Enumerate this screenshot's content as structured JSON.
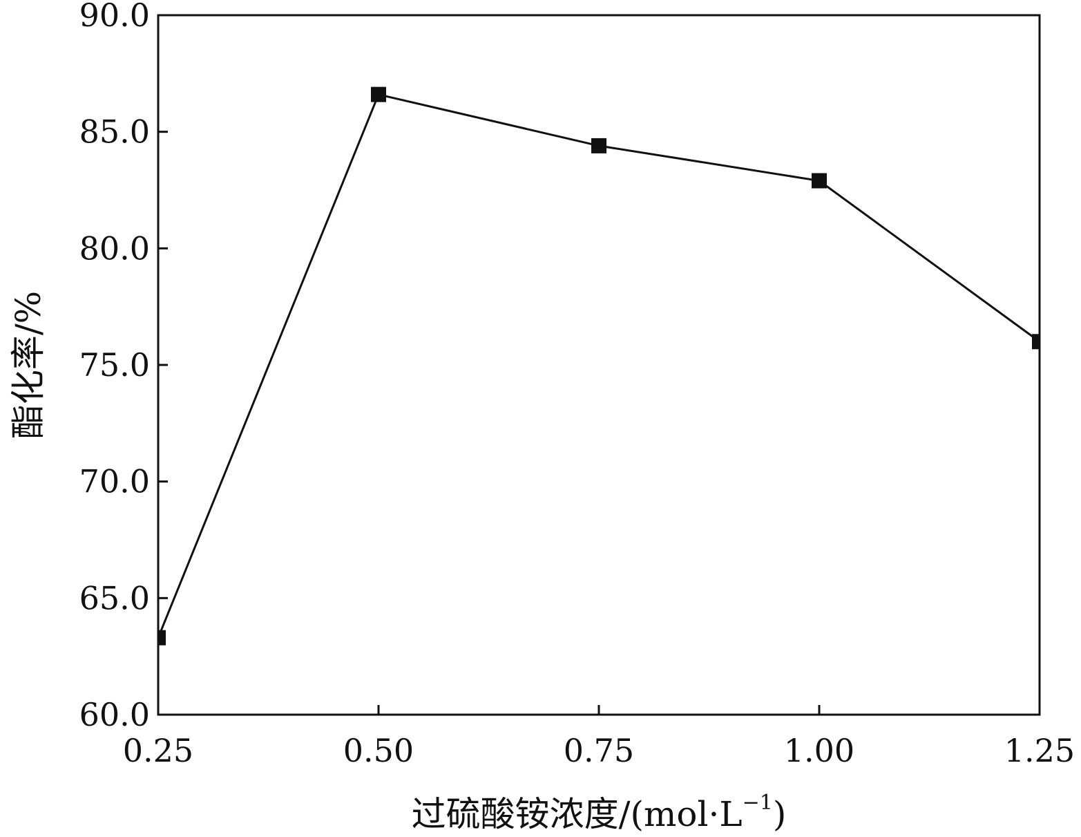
{
  "chart_data": {
    "type": "line",
    "xlabel": "过硫酸铵浓度/(mol·L",
    "xlabel_sup": "−1",
    "xlabel_end": ")",
    "ylabel": "酯化率/%",
    "xlim": [
      0.25,
      1.25
    ],
    "ylim": [
      60.0,
      90.0
    ],
    "x_ticks": [
      0.25,
      0.5,
      0.75,
      1.0,
      1.25
    ],
    "x_tick_labels": [
      "0.25",
      "0.50",
      "0.75",
      "1.00",
      "1.25"
    ],
    "y_ticks": [
      60.0,
      65.0,
      70.0,
      75.0,
      80.0,
      85.0,
      90.0
    ],
    "y_tick_labels": [
      "60.0",
      "65.0",
      "70.0",
      "75.0",
      "80.0",
      "85.0",
      "90.0"
    ],
    "grid": false,
    "marker": "square",
    "series": [
      {
        "x": [
          0.25,
          0.5,
          0.75,
          1.0,
          1.25
        ],
        "values": [
          63.3,
          86.6,
          84.4,
          82.9,
          76.0
        ]
      }
    ]
  }
}
